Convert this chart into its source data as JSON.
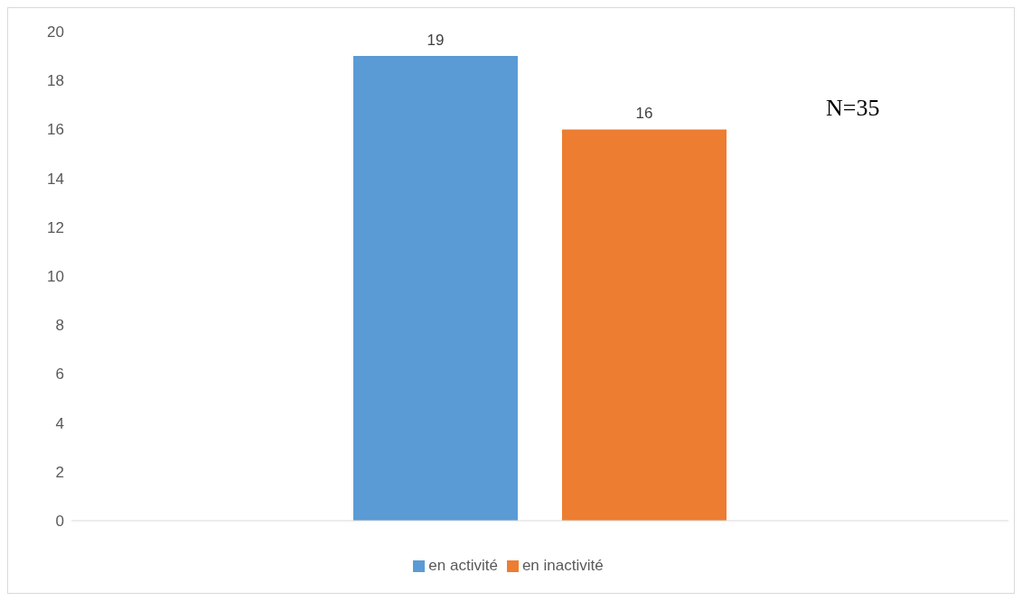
{
  "chart_data": {
    "type": "bar",
    "categories": [
      null
    ],
    "series": [
      {
        "name": "en activité",
        "color": "#5b9bd5",
        "values": [
          19
        ]
      },
      {
        "name": "en inactivité",
        "color": "#ed7d31",
        "values": [
          16
        ]
      }
    ],
    "ylim": [
      0,
      20
    ],
    "yticks": [
      0,
      2,
      4,
      6,
      8,
      10,
      12,
      14,
      16,
      18,
      20
    ],
    "grid": false,
    "legend": "bottom",
    "data_labels": true,
    "annotations": [
      "N=35"
    ]
  }
}
